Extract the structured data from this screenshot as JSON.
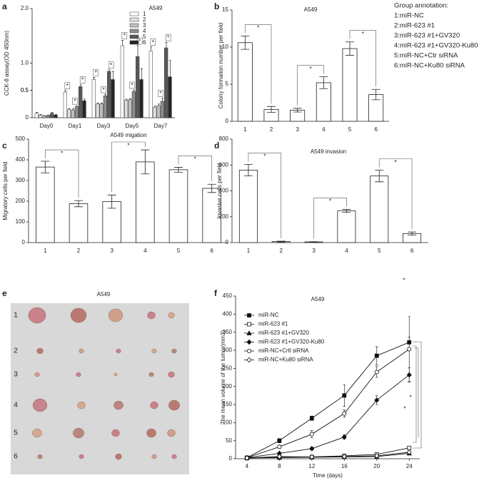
{
  "group_annotation": {
    "title": "Group annotation:",
    "items": [
      "1:miR-NC",
      "2:miR-623 #1",
      "3:miR-623 #1+GV320",
      "4:miR-623 #1+GV320-Ku80",
      "5:miR-NC+Ctr siRNA",
      "6:miR-NC+Ku80 siRNA"
    ]
  },
  "chart_data": [
    {
      "type": "groupedbar",
      "panel": "a",
      "title": "A549",
      "y_label": "CCK-8 assay(OD 450nm)",
      "categories": [
        "Day0",
        "Day1",
        "Day3",
        "Day5",
        "Day7"
      ],
      "series": [
        {
          "name": "1",
          "color": "#ffffff",
          "values": [
            0.08,
            0.47,
            0.7,
            1.32,
            1.22
          ],
          "errors": [
            0.02,
            0.03,
            0.04,
            0.1,
            0.08
          ]
        },
        {
          "name": "2",
          "color": "#e0e0e0",
          "values": [
            0.05,
            0.15,
            0.25,
            0.32,
            0.19
          ],
          "errors": [
            0.01,
            0.02,
            0.02,
            0.02,
            0.03
          ]
        },
        {
          "name": "3",
          "color": "#bfbfbf",
          "values": [
            0.03,
            0.14,
            0.25,
            0.33,
            0.22
          ],
          "errors": [
            0.01,
            0.02,
            0.02,
            0.02,
            0.03
          ]
        },
        {
          "name": "4",
          "color": "#8c8c8c",
          "values": [
            0.04,
            0.2,
            0.4,
            0.48,
            0.3
          ],
          "errors": [
            0.01,
            0.02,
            0.03,
            0.03,
            0.06
          ]
        },
        {
          "name": "5",
          "color": "#595959",
          "values": [
            0.08,
            0.57,
            0.85,
            1.12,
            1.28
          ],
          "errors": [
            0.02,
            0.04,
            0.03,
            0.2,
            0.1
          ]
        },
        {
          "name": "6",
          "color": "#262626",
          "values": [
            0.05,
            0.31,
            0.7,
            0.7,
            0.75
          ],
          "errors": [
            0.01,
            0.03,
            0.15,
            0.2,
            0.3
          ]
        }
      ],
      "ylim": [
        0,
        2
      ],
      "yticks": [
        0,
        0.5,
        {
          "value": 1,
          "label": "1.0"
        },
        0.5,
        {
          "value": 2,
          "label": "2.0"
        }
      ],
      "annotations": [
        "*",
        "*",
        "*",
        "*",
        "*",
        "*",
        "*",
        "*",
        "*",
        "*",
        "*",
        "*"
      ]
    },
    {
      "type": "bar",
      "panel": "b",
      "title": "A549",
      "y_label": "Colony formation number per field",
      "categories": [
        "1",
        "2",
        "3",
        "4",
        "5",
        "6"
      ],
      "values": [
        10.6,
        1.6,
        1.5,
        5.2,
        9.8,
        3.6
      ],
      "errors": [
        0.9,
        0.4,
        0.25,
        0.8,
        0.9,
        0.7
      ],
      "color": "#ffffff",
      "ylim": [
        0,
        15
      ],
      "yticks": [
        0,
        5,
        10,
        15
      ],
      "annotations": [
        "*",
        "*",
        "*"
      ]
    },
    {
      "type": "bar",
      "panel": "c",
      "title": "A549 migation",
      "y_label": "Migratory cells per field",
      "categories": [
        "1",
        "2",
        "3",
        "4",
        "5",
        "6"
      ],
      "values": [
        365,
        188,
        198,
        390,
        352,
        262
      ],
      "errors": [
        28,
        15,
        32,
        58,
        12,
        20
      ],
      "color": "#ffffff",
      "ylim": [
        0,
        500
      ],
      "yticks": [
        0,
        100,
        200,
        300,
        400,
        500
      ],
      "annotations": [
        "*",
        "*",
        "*"
      ]
    },
    {
      "type": "bar",
      "panel": "d",
      "title": "A549 invasion",
      "y_label": "Invasive cells per field",
      "categories": [
        "1",
        "2",
        "3",
        "4",
        "5",
        "6"
      ],
      "values": [
        560,
        8,
        5,
        245,
        515,
        70
      ],
      "errors": [
        45,
        3,
        2,
        12,
        45,
        12
      ],
      "color": "#ffffff",
      "ylim": [
        0,
        800
      ],
      "yticks": [
        0,
        200,
        400,
        600,
        800
      ],
      "annotations": [
        "*",
        "*",
        "*"
      ]
    },
    {
      "type": "image",
      "panel": "e",
      "title": "A549",
      "row_labels": [
        "1",
        "2",
        "3",
        "4",
        "5",
        "6"
      ]
    },
    {
      "type": "line",
      "panel": "f",
      "title": "A549",
      "x_label": "Time (days)",
      "y_label": "The mean volume of the tumor(mm3)",
      "x": [
        4,
        8,
        12,
        16,
        20,
        24
      ],
      "series": [
        {
          "name": "miR-NC",
          "color": "#111111",
          "marker": "square-filled",
          "values": [
            3,
            50,
            112,
            175,
            285,
            322
          ],
          "errors": [
            2,
            6,
            6,
            30,
            25,
            15
          ]
        },
        {
          "name": "miR-623 #1",
          "color": "#111111",
          "marker": "square-open",
          "values": [
            2,
            5,
            5,
            8,
            12,
            30
          ],
          "errors": [
            1,
            2,
            2,
            2,
            3,
            4
          ]
        },
        {
          "name": "miR-623 #1+GV320",
          "color": "#111111",
          "marker": "triangle-filled",
          "values": [
            2,
            3,
            4,
            5,
            6,
            15
          ],
          "errors": [
            1,
            1,
            1,
            1,
            2,
            3
          ]
        },
        {
          "name": "miR-623 #1+GV320-Ku80",
          "color": "#111111",
          "marker": "diamond-filled",
          "values": [
            3,
            15,
            28,
            60,
            162,
            232
          ],
          "errors": [
            1,
            3,
            4,
            6,
            12,
            20
          ]
        },
        {
          "name": "miR-NC+Crtl siRNA",
          "color": "#111111",
          "marker": "circle-open",
          "values": [
            3,
            33,
            68,
            125,
            240,
            303
          ],
          "errors": [
            1,
            5,
            10,
            10,
            15,
            90
          ]
        },
        {
          "name": "miR-NC+Ku80 siRNA",
          "color": "#111111",
          "marker": "diamond-open",
          "values": [
            2,
            6,
            5,
            6,
            8,
            18
          ],
          "errors": [
            1,
            2,
            2,
            2,
            2,
            3
          ]
        }
      ],
      "xlim": [
        2.6,
        25.3
      ],
      "xticks": [
        4,
        8,
        12,
        16,
        20,
        24
      ],
      "ylim": [
        0,
        450
      ],
      "yticks": [
        0,
        50,
        100,
        150,
        200,
        250,
        300,
        350,
        400,
        450
      ],
      "annotations": [
        "*",
        "*",
        "*"
      ]
    }
  ]
}
